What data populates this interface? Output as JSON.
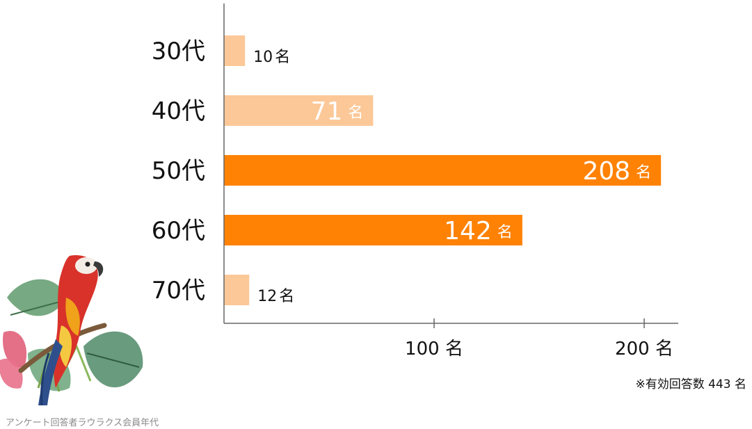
{
  "chart_data": {
    "type": "bar",
    "orientation": "horizontal",
    "categories": [
      "30代",
      "40代",
      "50代",
      "60代",
      "70代"
    ],
    "values": [
      10,
      71,
      208,
      142,
      12
    ],
    "value_labels": [
      "10",
      "71",
      "208",
      "142",
      "12"
    ],
    "unit": "名",
    "xticks": [
      "100",
      "200"
    ],
    "xtick_values": [
      100,
      200
    ],
    "xlim": [
      0,
      210
    ],
    "grid": false,
    "colors": [
      "#fcc898",
      "#fcc898",
      "#ff8205",
      "#ff8205",
      "#fcc898"
    ],
    "xlabel": "",
    "ylabel": ""
  },
  "note": "※有効回答数 443 名",
  "source": "アンケート回答者ラウラクス会員年代",
  "decoration": {
    "icon": "parrot-with-tropical-leaves"
  }
}
